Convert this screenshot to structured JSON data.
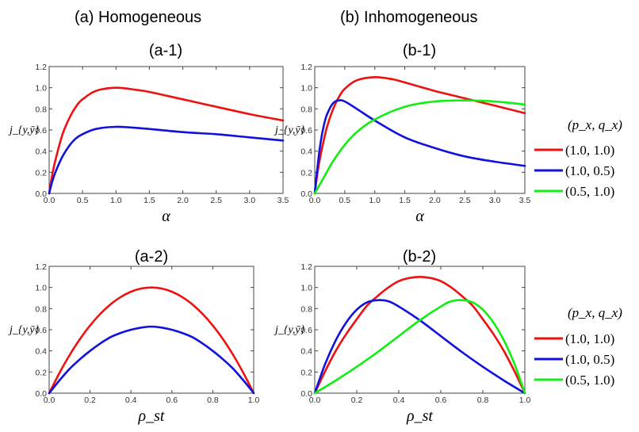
{
  "headings": {
    "a": "(a)  Homogeneous",
    "b": "(b)  Inhomogeneous"
  },
  "colors": {
    "red": "#ee1111",
    "blue": "#1111dd",
    "green": "#11ee11"
  },
  "legend": {
    "title": "(p_x, q_x)",
    "entries": [
      "(1.0, 1.0)",
      "(1.0, 0.5)",
      "(0.5, 1.0)"
    ]
  },
  "chart_data": [
    {
      "id": "a-1",
      "type": "line",
      "title": "(a-1)",
      "xlabel": "α",
      "ylabel": "j_{y,ȳ}",
      "xlim": [
        0,
        3.5
      ],
      "ylim": [
        0,
        1.2
      ],
      "xticks": [
        "0.0",
        "0.5",
        "1.0",
        "1.5",
        "2.0",
        "2.5",
        "3.0",
        "3.5"
      ],
      "yticks": [
        "0.0",
        "0.2",
        "0.4",
        "0.6",
        "0.8",
        "1.0",
        "1.2"
      ],
      "series": [
        {
          "name": "(1.0, 1.0)",
          "color": "red",
          "x": [
            0,
            0.05,
            0.1,
            0.2,
            0.3,
            0.4,
            0.5,
            0.7,
            1.0,
            1.3,
            1.5,
            2.0,
            2.5,
            3.0,
            3.5
          ],
          "y": [
            0,
            0.19,
            0.33,
            0.56,
            0.71,
            0.82,
            0.89,
            0.97,
            1.0,
            0.98,
            0.96,
            0.89,
            0.82,
            0.75,
            0.69
          ]
        },
        {
          "name": "(1.0, 0.5)",
          "color": "blue",
          "x": [
            0,
            0.05,
            0.1,
            0.2,
            0.3,
            0.4,
            0.5,
            0.7,
            1.0,
            1.3,
            1.5,
            2.0,
            2.5,
            3.0,
            3.5
          ],
          "y": [
            0,
            0.12,
            0.21,
            0.35,
            0.45,
            0.52,
            0.56,
            0.61,
            0.63,
            0.62,
            0.61,
            0.58,
            0.56,
            0.53,
            0.5
          ]
        }
      ]
    },
    {
      "id": "b-1",
      "type": "line",
      "title": "(b-1)",
      "xlabel": "α",
      "ylabel": "j_{y,ȳ}",
      "xlim": [
        0,
        3.5
      ],
      "ylim": [
        0,
        1.2
      ],
      "xticks": [
        "0.0",
        "0.5",
        "1.0",
        "1.5",
        "2.0",
        "2.5",
        "3.0",
        "3.5"
      ],
      "yticks": [
        "0.0",
        "0.2",
        "0.4",
        "0.6",
        "0.8",
        "1.0",
        "1.2"
      ],
      "series": [
        {
          "name": "(1.0, 1.0)",
          "color": "red",
          "x": [
            0,
            0.05,
            0.1,
            0.2,
            0.3,
            0.4,
            0.5,
            0.7,
            1.0,
            1.3,
            1.5,
            2.0,
            2.5,
            3.0,
            3.5
          ],
          "y": [
            0,
            0.21,
            0.37,
            0.62,
            0.79,
            0.91,
            0.99,
            1.07,
            1.1,
            1.08,
            1.05,
            0.97,
            0.9,
            0.83,
            0.76
          ]
        },
        {
          "name": "(1.0, 0.5)",
          "color": "blue",
          "x": [
            0,
            0.05,
            0.1,
            0.15,
            0.2,
            0.3,
            0.4,
            0.5,
            0.7,
            1.0,
            1.5,
            2.0,
            2.5,
            3.0,
            3.5
          ],
          "y": [
            0,
            0.27,
            0.49,
            0.64,
            0.74,
            0.85,
            0.88,
            0.87,
            0.8,
            0.69,
            0.53,
            0.43,
            0.35,
            0.3,
            0.26
          ]
        },
        {
          "name": "(0.5, 1.0)",
          "color": "green",
          "x": [
            0,
            0.1,
            0.2,
            0.3,
            0.5,
            0.7,
            1.0,
            1.5,
            2.0,
            2.5,
            3.0,
            3.5
          ],
          "y": [
            0,
            0.1,
            0.2,
            0.3,
            0.46,
            0.58,
            0.7,
            0.82,
            0.87,
            0.88,
            0.87,
            0.84
          ]
        }
      ]
    },
    {
      "id": "a-2",
      "type": "line",
      "title": "(a-2)",
      "xlabel": "ρ_st",
      "ylabel": "j_{y,ȳ}",
      "xlim": [
        0,
        1
      ],
      "ylim": [
        0,
        1.2
      ],
      "xticks": [
        "0.0",
        "0.2",
        "0.4",
        "0.6",
        "0.8",
        "1.0"
      ],
      "yticks": [
        "0.0",
        "0.2",
        "0.4",
        "0.6",
        "0.8",
        "1.0",
        "1.2"
      ],
      "series": [
        {
          "name": "(1.0, 1.0)",
          "color": "red",
          "x": [
            0,
            0.05,
            0.1,
            0.15,
            0.2,
            0.25,
            0.3,
            0.35,
            0.4,
            0.45,
            0.5,
            0.55,
            0.6,
            0.65,
            0.7,
            0.75,
            0.8,
            0.85,
            0.9,
            0.95,
            1
          ],
          "y": [
            0,
            0.19,
            0.36,
            0.51,
            0.64,
            0.75,
            0.84,
            0.91,
            0.96,
            0.99,
            1.0,
            0.99,
            0.96,
            0.91,
            0.84,
            0.75,
            0.64,
            0.51,
            0.36,
            0.19,
            0
          ]
        },
        {
          "name": "(1.0, 0.5)",
          "color": "blue",
          "x": [
            0,
            0.05,
            0.1,
            0.15,
            0.2,
            0.25,
            0.3,
            0.35,
            0.4,
            0.45,
            0.5,
            0.55,
            0.6,
            0.65,
            0.7,
            0.75,
            0.8,
            0.85,
            0.9,
            0.95,
            1
          ],
          "y": [
            0,
            0.12,
            0.23,
            0.32,
            0.4,
            0.47,
            0.53,
            0.57,
            0.6,
            0.62,
            0.63,
            0.62,
            0.6,
            0.57,
            0.53,
            0.47,
            0.4,
            0.32,
            0.23,
            0.12,
            0
          ]
        }
      ]
    },
    {
      "id": "b-2",
      "type": "line",
      "title": "(b-2)",
      "xlabel": "ρ_st",
      "ylabel": "j_{y,ȳ}",
      "xlim": [
        0,
        1
      ],
      "ylim": [
        0,
        1.2
      ],
      "xticks": [
        "0.0",
        "0.2",
        "0.4",
        "0.6",
        "0.8",
        "1.0"
      ],
      "yticks": [
        "0.0",
        "0.2",
        "0.4",
        "0.6",
        "0.8",
        "1.0",
        "1.2"
      ],
      "series": [
        {
          "name": "(1.0, 1.0)",
          "color": "red",
          "x": [
            0,
            0.05,
            0.1,
            0.15,
            0.2,
            0.25,
            0.3,
            0.35,
            0.4,
            0.45,
            0.5,
            0.55,
            0.6,
            0.65,
            0.7,
            0.75,
            0.8,
            0.85,
            0.9,
            0.95,
            1
          ],
          "y": [
            0,
            0.21,
            0.4,
            0.56,
            0.7,
            0.83,
            0.92,
            1.0,
            1.06,
            1.09,
            1.1,
            1.09,
            1.06,
            1.0,
            0.92,
            0.83,
            0.7,
            0.56,
            0.4,
            0.21,
            0
          ]
        },
        {
          "name": "(1.0, 0.5)",
          "color": "blue",
          "x": [
            0,
            0.05,
            0.1,
            0.15,
            0.2,
            0.25,
            0.3,
            0.35,
            0.4,
            0.5,
            0.6,
            0.7,
            0.8,
            0.9,
            1
          ],
          "y": [
            0,
            0.28,
            0.5,
            0.67,
            0.79,
            0.86,
            0.88,
            0.87,
            0.82,
            0.69,
            0.54,
            0.39,
            0.25,
            0.12,
            0
          ]
        },
        {
          "name": "(0.5, 1.0)",
          "color": "green",
          "x": [
            0,
            0.1,
            0.2,
            0.3,
            0.4,
            0.5,
            0.6,
            0.65,
            0.7,
            0.75,
            0.8,
            0.85,
            0.9,
            0.95,
            1
          ],
          "y": [
            0,
            0.12,
            0.25,
            0.39,
            0.54,
            0.69,
            0.82,
            0.87,
            0.88,
            0.86,
            0.79,
            0.67,
            0.5,
            0.28,
            0
          ]
        }
      ]
    }
  ]
}
